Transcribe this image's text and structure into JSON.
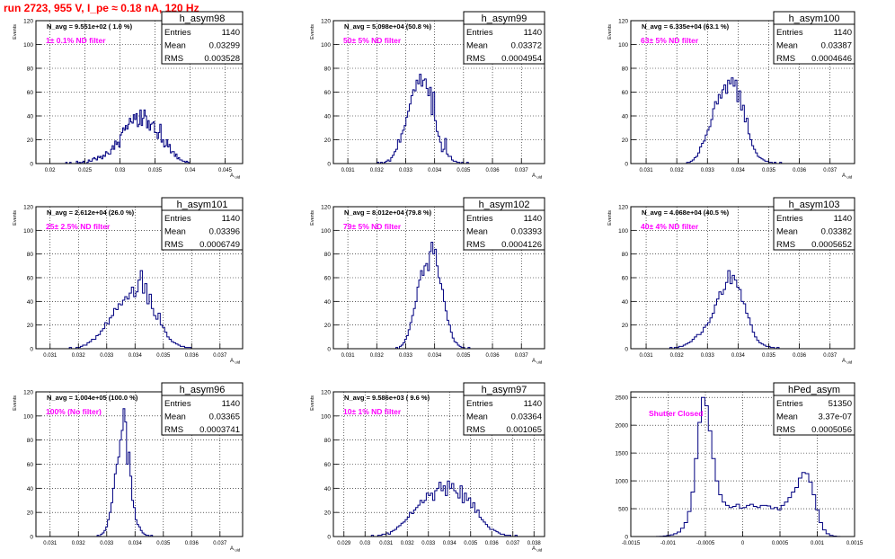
{
  "header": {
    "run_title": "run 2723,   955 V, I_pe ≈ 0.18 nA, 120 Hz"
  },
  "colors": {
    "histogram_line": "#000080",
    "annotation": "#ff00ff",
    "title": "#ff0000",
    "grid": "#000000"
  },
  "chart_data": [
    {
      "type": "bar",
      "histtype": "step",
      "title": "h_asym98",
      "stats": {
        "entries": "1140",
        "mean": "0.03299",
        "rms": "0.003528"
      },
      "navg_text": "N_avg = 9.551e+02 ( 1.0 %)",
      "filter_text": "1± 0.1% ND filter",
      "ylabel": "Events",
      "xlabel": "A_uid",
      "xlim": [
        0.018,
        0.0475
      ],
      "ylim": [
        0,
        120
      ],
      "grid": true,
      "yticks": [
        0,
        20,
        40,
        60,
        80,
        100,
        120
      ],
      "xticks": [
        0.02,
        0.025,
        0.03,
        0.035,
        0.04,
        0.045
      ],
      "xticklabels": [
        "0.02",
        "0.025",
        "0.03",
        "0.035",
        "0.04",
        "0.045"
      ],
      "bin_edges": [
        0.0215,
        0.0404
      ],
      "values": [
        0,
        0,
        0,
        0,
        1,
        0,
        0,
        1,
        0,
        0,
        0,
        0,
        2,
        0,
        1,
        0,
        1,
        2,
        0,
        0,
        1,
        3,
        2,
        2,
        4,
        5,
        4,
        3,
        6,
        5,
        6,
        4,
        7,
        6,
        10,
        9,
        8,
        8,
        12,
        15,
        12,
        19,
        16,
        18,
        14,
        24,
        26,
        30,
        28,
        32,
        29,
        33,
        38,
        35,
        34,
        41,
        37,
        42,
        31,
        33,
        45,
        32,
        38,
        45,
        40,
        30,
        36,
        28,
        33,
        34,
        35,
        26,
        26,
        21,
        26,
        33,
        18,
        20,
        14,
        15,
        20,
        14,
        16,
        9,
        10,
        10,
        6,
        8,
        4,
        5,
        3,
        3,
        2,
        2,
        1,
        2,
        1,
        0,
        0,
        0
      ]
    },
    {
      "type": "bar",
      "histtype": "step",
      "title": "h_asym99",
      "stats": {
        "entries": "1140",
        "mean": "0.03372",
        "rms": "0.0004954"
      },
      "navg_text": "N_avg = 5.098e+04 (50.8 %)",
      "filter_text": "50± 5% ND filter",
      "ylabel": "Events",
      "xlabel": "A_uid",
      "xlim": [
        0.0305,
        0.0378
      ],
      "ylim": [
        0,
        120
      ],
      "grid": true,
      "yticks": [
        0,
        20,
        40,
        60,
        80,
        100,
        120
      ],
      "xticks": [
        0.031,
        0.032,
        0.033,
        0.034,
        0.035,
        0.036,
        0.037
      ],
      "xticklabels": [
        "0.031",
        "0.032",
        "0.033",
        "0.034",
        "0.035",
        "0.036",
        "0.037"
      ],
      "bin_edges": [
        0.0319,
        0.0354
      ],
      "values": [
        0,
        0,
        1,
        0,
        1,
        0,
        1,
        2,
        3,
        2,
        5,
        7,
        10,
        12,
        20,
        18,
        25,
        28,
        32,
        39,
        44,
        50,
        57,
        62,
        61,
        70,
        67,
        75,
        65,
        70,
        71,
        63,
        57,
        64,
        41,
        60,
        36,
        27,
        23,
        18,
        10,
        12,
        21,
        8,
        6,
        6,
        3,
        2,
        2,
        1,
        1,
        0,
        1,
        0,
        0,
        1,
        0,
        0,
        0,
        0
      ]
    },
    {
      "type": "bar",
      "histtype": "step",
      "title": "h_asym100",
      "stats": {
        "entries": "1140",
        "mean": "0.03387",
        "rms": "0.0004646"
      },
      "navg_text": "N_avg = 6.335e+04 (63.1 %)",
      "filter_text": "63± 5% ND filter",
      "ylabel": "Events",
      "xlabel": "A_uid",
      "xlim": [
        0.0305,
        0.0378
      ],
      "ylim": [
        0,
        120
      ],
      "grid": true,
      "yticks": [
        0,
        20,
        40,
        60,
        80,
        100,
        120
      ],
      "xticks": [
        0.031,
        0.032,
        0.033,
        0.034,
        0.035,
        0.036,
        0.037
      ],
      "xticklabels": [
        "0.031",
        "0.032",
        "0.033",
        "0.034",
        "0.035",
        "0.036",
        "0.037"
      ],
      "bin_edges": [
        0.0322,
        0.0356
      ],
      "values": [
        0,
        0,
        1,
        1,
        2,
        3,
        5,
        6,
        9,
        14,
        17,
        19,
        24,
        28,
        31,
        37,
        46,
        52,
        50,
        58,
        55,
        62,
        66,
        59,
        70,
        67,
        72,
        65,
        70,
        52,
        61,
        45,
        49,
        35,
        38,
        25,
        20,
        15,
        12,
        9,
        6,
        5,
        4,
        3,
        2,
        2,
        1,
        1,
        0,
        1,
        0,
        0,
        1,
        0,
        0,
        0
      ]
    },
    {
      "type": "bar",
      "histtype": "step",
      "title": "h_asym101",
      "stats": {
        "entries": "1140",
        "mean": "0.03396",
        "rms": "0.0006749"
      },
      "navg_text": "N_avg = 2.612e+04 (26.0 %)",
      "filter_text": "25± 2.5% ND filter",
      "ylabel": "Events",
      "xlabel": "A_uid",
      "xlim": [
        0.0305,
        0.0378
      ],
      "ylim": [
        0,
        120
      ],
      "grid": true,
      "yticks": [
        0,
        20,
        40,
        60,
        80,
        100,
        120
      ],
      "xticks": [
        0.031,
        0.032,
        0.033,
        0.034,
        0.035,
        0.036,
        0.037
      ],
      "xticklabels": [
        "0.031",
        "0.032",
        "0.033",
        "0.034",
        "0.035",
        "0.036",
        "0.037"
      ],
      "bin_edges": [
        0.0316,
        0.0363
      ],
      "values": [
        0,
        1,
        0,
        0,
        1,
        1,
        2,
        3,
        3,
        5,
        6,
        8,
        8,
        11,
        12,
        15,
        17,
        22,
        21,
        26,
        28,
        34,
        33,
        38,
        37,
        41,
        44,
        42,
        47,
        52,
        44,
        48,
        58,
        66,
        47,
        55,
        38,
        46,
        34,
        28,
        25,
        30,
        20,
        18,
        14,
        10,
        8,
        6,
        5,
        4,
        3,
        2,
        2,
        1,
        1,
        1,
        0,
        0,
        0,
        0
      ]
    },
    {
      "type": "bar",
      "histtype": "step",
      "title": "h_asym102",
      "stats": {
        "entries": "1140",
        "mean": "0.03393",
        "rms": "0.0004126"
      },
      "navg_text": "N_avg = 8.012e+04 (79.8 %)",
      "filter_text": "79± 5% ND filter",
      "ylabel": "Events",
      "xlabel": "A_uid",
      "xlim": [
        0.0305,
        0.0378
      ],
      "ylim": [
        0,
        120
      ],
      "grid": true,
      "yticks": [
        0,
        20,
        40,
        60,
        80,
        100,
        120
      ],
      "xticks": [
        0.031,
        0.032,
        0.033,
        0.034,
        0.035,
        0.036,
        0.037
      ],
      "xticklabels": [
        "0.031",
        "0.032",
        "0.033",
        "0.034",
        "0.035",
        "0.036",
        "0.037"
      ],
      "bin_edges": [
        0.0326,
        0.0354
      ],
      "values": [
        0,
        1,
        0,
        2,
        3,
        5,
        8,
        11,
        16,
        22,
        28,
        34,
        40,
        52,
        58,
        66,
        62,
        70,
        72,
        66,
        82,
        90,
        80,
        84,
        70,
        60,
        55,
        50,
        40,
        32,
        24,
        20,
        14,
        9,
        6,
        5,
        3,
        2,
        1,
        1,
        0,
        0,
        1,
        0,
        0,
        0
      ]
    },
    {
      "type": "bar",
      "histtype": "step",
      "title": "h_asym103",
      "stats": {
        "entries": "1140",
        "mean": "0.03382",
        "rms": "0.0005652"
      },
      "navg_text": "N_avg = 4.068e+04 (40.5 %)",
      "filter_text": "40± 4% ND filter",
      "ylabel": "Events",
      "xlabel": "A_uid",
      "xlim": [
        0.0305,
        0.0378
      ],
      "ylim": [
        0,
        120
      ],
      "grid": true,
      "yticks": [
        0,
        20,
        40,
        60,
        80,
        100,
        120
      ],
      "xticks": [
        0.031,
        0.032,
        0.033,
        0.034,
        0.035,
        0.036,
        0.037
      ],
      "xticklabels": [
        "0.031",
        "0.032",
        "0.033",
        "0.034",
        "0.035",
        "0.036",
        "0.037"
      ],
      "bin_edges": [
        0.0317,
        0.0357
      ],
      "values": [
        0,
        1,
        0,
        1,
        1,
        2,
        2,
        3,
        4,
        5,
        6,
        8,
        10,
        12,
        12,
        14,
        18,
        20,
        22,
        26,
        30,
        37,
        42,
        48,
        46,
        50,
        56,
        66,
        55,
        62,
        58,
        52,
        50,
        40,
        38,
        30,
        26,
        20,
        14,
        10,
        7,
        5,
        4,
        3,
        2,
        2,
        1,
        1,
        0,
        1,
        0,
        0,
        0,
        0,
        0
      ]
    },
    {
      "type": "bar",
      "histtype": "step",
      "title": "h_asym96",
      "stats": {
        "entries": "1140",
        "mean": "0.03365",
        "rms": "0.0003741"
      },
      "navg_text": "N_avg = 1.004e+05 (100.0 %)",
      "filter_text": "100% (No filter)",
      "ylabel": "Events",
      "xlabel": "A_uid",
      "xlim": [
        0.0305,
        0.0378
      ],
      "ylim": [
        0,
        120
      ],
      "grid": true,
      "yticks": [
        0,
        20,
        40,
        60,
        80,
        100,
        120
      ],
      "xticks": [
        0.031,
        0.032,
        0.033,
        0.034,
        0.035,
        0.036,
        0.037
      ],
      "xticklabels": [
        "0.031",
        "0.032",
        "0.033",
        "0.034",
        "0.035",
        "0.036",
        "0.037"
      ],
      "bin_edges": [
        0.0326,
        0.0348
      ],
      "values": [
        0,
        1,
        0,
        2,
        3,
        5,
        8,
        14,
        20,
        28,
        40,
        52,
        60,
        66,
        80,
        88,
        106,
        95,
        60,
        70,
        50,
        30,
        24,
        14,
        10,
        8,
        5,
        3,
        2,
        1,
        1,
        0,
        1,
        0,
        0,
        0
      ]
    },
    {
      "type": "bar",
      "histtype": "step",
      "title": "h_asym97",
      "stats": {
        "entries": "1140",
        "mean": "0.03364",
        "rms": "0.001065"
      },
      "navg_text": "N_avg = 9.586e+03 ( 9.6 %)",
      "filter_text": "10± 1% ND filter",
      "ylabel": "Events",
      "xlabel": "A_uid",
      "xlim": [
        0.0285,
        0.0385
      ],
      "ylim": [
        0,
        120
      ],
      "grid": true,
      "yticks": [
        0,
        20,
        40,
        60,
        80,
        100,
        120
      ],
      "xticks": [
        0.029,
        0.03,
        0.031,
        0.032,
        0.033,
        0.034,
        0.035,
        0.036,
        0.037,
        0.038
      ],
      "xticklabels": [
        "0.029",
        "0.03",
        "0.031",
        "0.032",
        "0.033",
        "0.034",
        "0.035",
        "0.036",
        "0.037",
        "0.038"
      ],
      "bin_edges": [
        0.0302,
        0.0372
      ],
      "values": [
        0,
        1,
        0,
        0,
        1,
        1,
        2,
        2,
        3,
        2,
        4,
        5,
        6,
        8,
        9,
        11,
        12,
        14,
        16,
        20,
        19,
        22,
        24,
        26,
        30,
        28,
        30,
        36,
        34,
        36,
        30,
        38,
        40,
        45,
        38,
        42,
        34,
        46,
        40,
        44,
        38,
        36,
        32,
        42,
        28,
        36,
        30,
        32,
        24,
        28,
        20,
        22,
        16,
        14,
        12,
        10,
        8,
        6,
        6,
        5,
        4,
        3,
        2,
        2,
        1,
        1,
        1,
        0,
        0,
        1
      ]
    },
    {
      "type": "bar",
      "histtype": "step",
      "title": "hPed_asym",
      "stats": {
        "entries": "51350",
        "mean": "3.37e-07",
        "rms": "0.0005056"
      },
      "navg_text": "",
      "filter_text": "Shutter Closed",
      "ylabel": "",
      "xlabel": "",
      "xlim": [
        -0.0015,
        0.0015
      ],
      "ylim": [
        0,
        2600
      ],
      "grid": true,
      "yticks": [
        0,
        500,
        1000,
        1500,
        2000,
        2500
      ],
      "xticks": [
        -0.0015,
        -0.001,
        -0.0005,
        0,
        0.0005,
        0.001,
        0.0015
      ],
      "xticklabels": [
        "-0.0015",
        "-0.001",
        "-0.0005",
        "0",
        "0.0005",
        "0.001",
        "0.0015"
      ],
      "bin_edges": [
        -0.00125,
        0.00135
      ],
      "values": [
        0,
        0,
        2,
        5,
        10,
        20,
        30,
        50,
        80,
        150,
        250,
        450,
        800,
        1400,
        2050,
        2500,
        2350,
        1900,
        1400,
        1000,
        750,
        620,
        560,
        520,
        540,
        580,
        510,
        520,
        560,
        580,
        540,
        520,
        560,
        560,
        550,
        500,
        520,
        480,
        560,
        620,
        700,
        800,
        880,
        1050,
        1150,
        1130,
        980,
        750,
        480,
        250,
        120,
        50,
        20,
        8,
        2,
        0
      ]
    }
  ]
}
